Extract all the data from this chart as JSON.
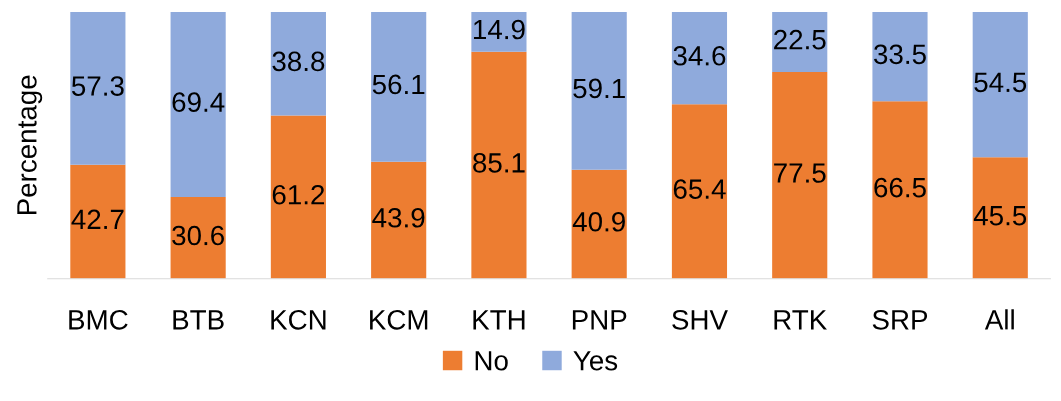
{
  "chart_data": {
    "type": "bar",
    "stacked": true,
    "ylabel": "Percentage",
    "categories": [
      "BMC",
      "BTB",
      "KCN",
      "KCM",
      "KTH",
      "PNP",
      "SHV",
      "RTK",
      "SRP",
      "All"
    ],
    "series": [
      {
        "name": "No",
        "color": "#ed7d31",
        "values": [
          42.7,
          30.6,
          61.2,
          43.9,
          85.1,
          40.9,
          65.4,
          77.5,
          66.5,
          45.5
        ]
      },
      {
        "name": "Yes",
        "color": "#8faadc",
        "values": [
          57.3,
          69.4,
          38.8,
          56.1,
          14.9,
          59.1,
          34.6,
          22.5,
          33.5,
          54.5
        ]
      }
    ],
    "data_labels": true,
    "legend": "bottom",
    "grid": false
  }
}
